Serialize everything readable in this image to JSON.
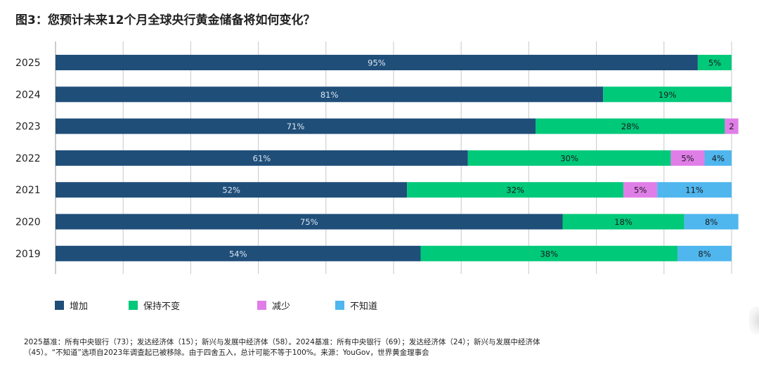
{
  "title": "图3：您预计未来12个月全球央行黄金储备将如何变化？",
  "chart_data": {
    "type": "bar",
    "orientation": "horizontal",
    "stacked": true,
    "percent_scale": true,
    "xlim": [
      0,
      100
    ],
    "grid": true,
    "legend_position": "bottom",
    "categories": [
      "2025",
      "2024",
      "2023",
      "2022",
      "2021",
      "2020",
      "2019"
    ],
    "series": [
      {
        "name": "增加",
        "color": "#1f4e79",
        "label_color": "#dbe6f1",
        "values": [
          95,
          81,
          71,
          61,
          52,
          75,
          54
        ],
        "labels": [
          "95%",
          "81%",
          "71%",
          "61%",
          "52%",
          "75%",
          "54%"
        ]
      },
      {
        "name": "保持不变",
        "color": "#00c97a",
        "label_color": "#1a1a1a",
        "values": [
          5,
          19,
          28,
          30,
          32,
          18,
          38
        ],
        "labels": [
          "5%",
          "19%",
          "28%",
          "30%",
          "32%",
          "18%",
          "38%"
        ]
      },
      {
        "name": "减少",
        "color": "#e07ee8",
        "label_color": "#1a1a1a",
        "values": [
          0,
          0,
          2,
          5,
          5,
          0,
          0
        ],
        "labels": [
          "",
          "",
          "2",
          "5%",
          "5%",
          "",
          ""
        ]
      },
      {
        "name": "不知道",
        "color": "#4fb6ee",
        "label_color": "#1a1a1a",
        "values": [
          0,
          0,
          0,
          4,
          11,
          8,
          8
        ],
        "labels": [
          "",
          "",
          "",
          "4%",
          "11%",
          "8%",
          "8%"
        ]
      }
    ]
  },
  "footnote": {
    "line1": "2025基准：所有中央银行（73）；发达经济体（15）；新兴与发展中经济体（58）。2024基准：所有中央银行（69）；发达经济体（24）；新兴与发展中经济体",
    "line2": "（45）。“不知道”选项自2023年调查起已被移除。由于四舍五入，总计可能不等于100%。来源：YouGov，世界黄金理事会"
  }
}
